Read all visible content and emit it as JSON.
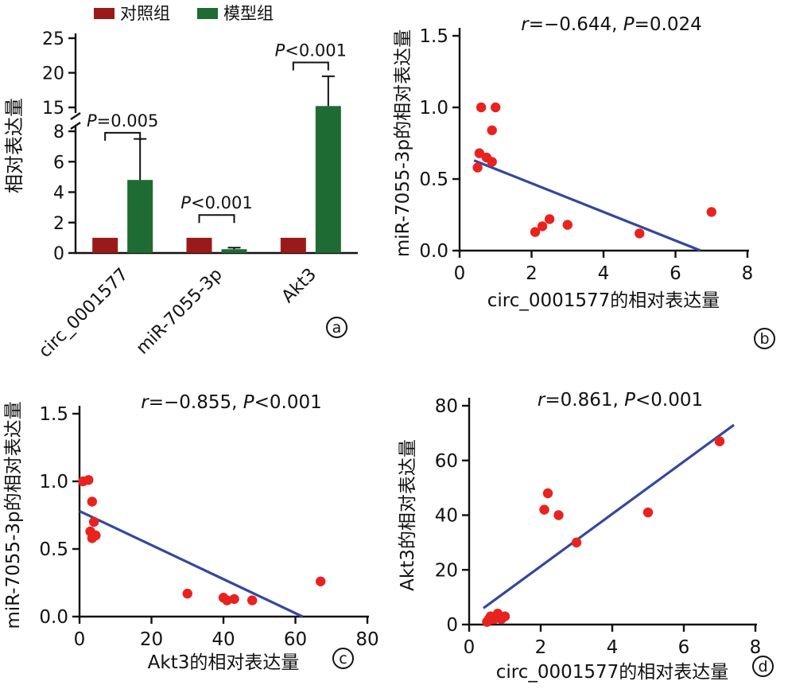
{
  "figure": {
    "background": "#ffffff",
    "colors": {
      "control": "#9a1a1a",
      "model": "#1e6b33",
      "point": "#e8231f",
      "line": "#35479d",
      "axis": "#111111"
    }
  },
  "panels": {
    "a": {
      "badge": "a"
    },
    "b": {
      "badge": "b"
    },
    "c": {
      "badge": "c"
    },
    "d": {
      "badge": "d"
    }
  },
  "chart_data": [
    {
      "id": "a",
      "type": "bar",
      "ylabel": "相对表达量",
      "categories": [
        "circ_0001577",
        "miR-7055-3p",
        "Akt3"
      ],
      "series": [
        {
          "name": "对照组",
          "color": "#9a1a1a",
          "values": [
            1,
            1,
            1
          ],
          "errors": [
            0,
            0,
            0
          ]
        },
        {
          "name": "模型组",
          "color": "#1e6b33",
          "values": [
            4.8,
            0.25,
            15.2
          ],
          "errors": [
            2.7,
            0.1,
            4.3
          ]
        }
      ],
      "significance": [
        {
          "category": 0,
          "text": "P=0.005",
          "y": 7.9
        },
        {
          "category": 1,
          "text": "P<0.001",
          "y": 2.5
        },
        {
          "category": 2,
          "text": "P<0.001",
          "y": 21.5
        }
      ],
      "axis_break": {
        "lower_range": [
          0,
          8
        ],
        "upper_range": [
          15,
          25
        ],
        "lower_ticks": [
          0,
          2,
          4,
          6,
          8
        ],
        "upper_ticks": [
          15,
          20,
          25
        ]
      },
      "legend_position": "top"
    },
    {
      "id": "b",
      "type": "scatter",
      "title": "r=−0.644, P=0.024",
      "xlabel": "circ_0001577的相对表达量",
      "ylabel": "miR-7055-3p的相对表达量",
      "xlim": [
        0,
        8
      ],
      "ylim": [
        0,
        1.5
      ],
      "xticks": [
        0,
        2,
        4,
        6,
        8
      ],
      "yticks": [
        0,
        0.5,
        1,
        1.5
      ],
      "ytick_decimals": 1,
      "points": [
        [
          0.6,
          1.0
        ],
        [
          1.0,
          1.0
        ],
        [
          0.9,
          0.84
        ],
        [
          0.55,
          0.68
        ],
        [
          0.75,
          0.65
        ],
        [
          0.9,
          0.62
        ],
        [
          0.5,
          0.58
        ],
        [
          2.1,
          0.13
        ],
        [
          2.3,
          0.17
        ],
        [
          2.5,
          0.22
        ],
        [
          3.0,
          0.18
        ],
        [
          5.0,
          0.12
        ],
        [
          7.0,
          0.27
        ]
      ],
      "regression_line": {
        "x1": 0.4,
        "y1": 0.63,
        "x2": 6.7,
        "y2": 0.0
      }
    },
    {
      "id": "c",
      "type": "scatter",
      "title": "r=−0.855, P<0.001",
      "xlabel": "Akt3的相对表达量",
      "ylabel": "miR-7055-3p的相对表达量",
      "xlim": [
        0,
        80
      ],
      "ylim": [
        0,
        1.5
      ],
      "xticks": [
        0,
        20,
        40,
        60,
        80
      ],
      "yticks": [
        0,
        0.5,
        1,
        1.5
      ],
      "ytick_decimals": 1,
      "points": [
        [
          1,
          1.0
        ],
        [
          2.5,
          1.01
        ],
        [
          3.5,
          0.85
        ],
        [
          4,
          0.7
        ],
        [
          3,
          0.63
        ],
        [
          4.5,
          0.6
        ],
        [
          3.5,
          0.58
        ],
        [
          30,
          0.17
        ],
        [
          40,
          0.14
        ],
        [
          41,
          0.12
        ],
        [
          43,
          0.13
        ],
        [
          48,
          0.12
        ],
        [
          67,
          0.26
        ]
      ],
      "regression_line": {
        "x1": 0,
        "y1": 0.78,
        "x2": 62,
        "y2": 0.0
      }
    },
    {
      "id": "d",
      "type": "scatter",
      "title": "r=0.861, P<0.001",
      "xlabel": "circ_0001577的相对表达量",
      "ylabel": "Akt3的相对表达量",
      "xlim": [
        0,
        8
      ],
      "ylim": [
        0,
        80
      ],
      "xticks": [
        0,
        2,
        4,
        6,
        8
      ],
      "yticks": [
        0,
        20,
        40,
        60,
        80
      ],
      "ytick_decimals": 0,
      "points": [
        [
          0.5,
          1
        ],
        [
          0.6,
          3
        ],
        [
          0.7,
          2
        ],
        [
          0.8,
          4
        ],
        [
          0.9,
          2
        ],
        [
          1.0,
          3
        ],
        [
          0.55,
          2
        ],
        [
          2.1,
          42
        ],
        [
          2.2,
          48
        ],
        [
          2.5,
          40
        ],
        [
          3.0,
          30
        ],
        [
          5.0,
          41
        ],
        [
          7.0,
          67
        ]
      ],
      "regression_line": {
        "x1": 0.4,
        "y1": 6,
        "x2": 7.4,
        "y2": 73
      }
    }
  ]
}
